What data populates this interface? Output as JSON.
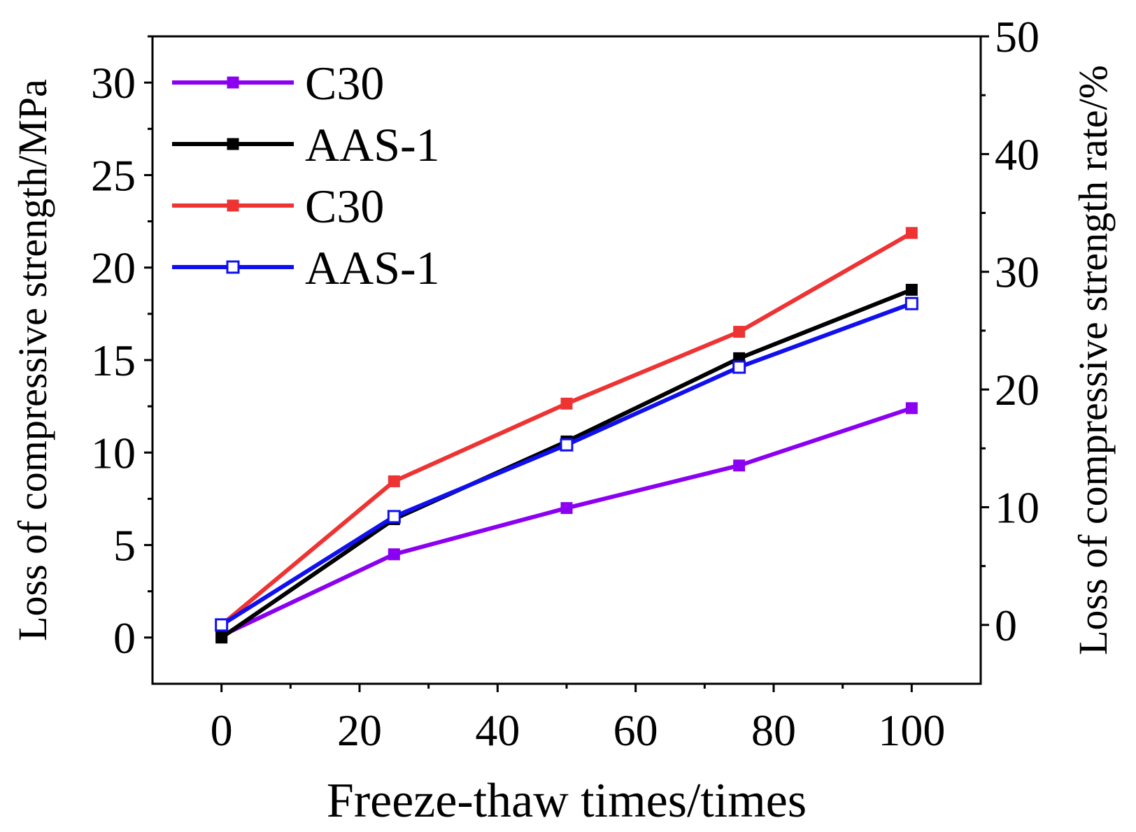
{
  "chart_data": {
    "type": "line",
    "title": "",
    "xlabel": "Freeze-thaw times/times",
    "ylabel": "Loss of compressive strength/MPa",
    "y2label": "Loss of compressive strength rate/%",
    "xlim": [
      -10,
      110
    ],
    "ylim": [
      -2.5,
      32.5
    ],
    "y2lim": [
      -5,
      50
    ],
    "x_ticks": [
      "0",
      "20",
      "40",
      "60",
      "80",
      "100"
    ],
    "x_tick_values": [
      0,
      20,
      40,
      60,
      80,
      100
    ],
    "y_ticks": [
      "0",
      "5",
      "10",
      "15",
      "20",
      "25",
      "30"
    ],
    "y_tick_values": [
      0,
      5,
      10,
      15,
      20,
      25,
      30
    ],
    "y2_ticks": [
      "0",
      "10",
      "20",
      "30",
      "40",
      "50"
    ],
    "y2_tick_values": [
      0,
      10,
      20,
      30,
      40,
      50
    ],
    "x": [
      0,
      25,
      50,
      75,
      100
    ],
    "series": [
      {
        "name": "C30",
        "axis": "left",
        "color": "#8B00F0",
        "marker": "filled-square",
        "values": [
          0.1,
          4.5,
          7.0,
          9.3,
          12.4
        ]
      },
      {
        "name": "AAS-1",
        "axis": "left",
        "color": "#000000",
        "marker": "filled-square",
        "values": [
          0.0,
          6.4,
          10.6,
          15.1,
          18.8
        ]
      },
      {
        "name": "C30",
        "axis": "right",
        "color": "#EE3333",
        "marker": "filled-square",
        "values": [
          0.0,
          12.2,
          18.8,
          24.9,
          33.3
        ]
      },
      {
        "name": "AAS-1",
        "axis": "right",
        "color": "#1010EE",
        "marker": "open-square",
        "values": [
          0.0,
          9.2,
          15.3,
          21.9,
          27.3
        ]
      }
    ],
    "legend_position": "top-left",
    "grid": false
  }
}
